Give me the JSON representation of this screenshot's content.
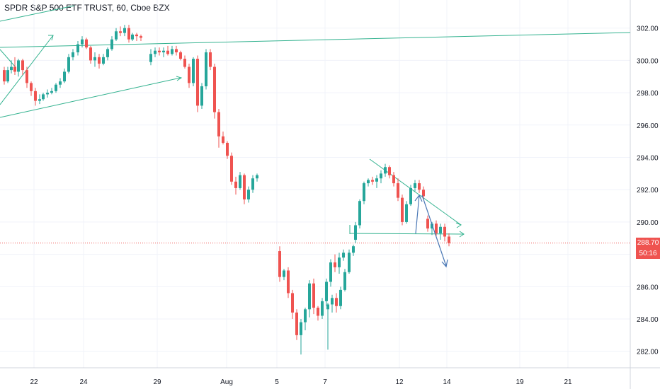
{
  "title": "SPDR S&P 500 ETF TRUST, 60, Cboe BZX",
  "chart_data": {
    "type": "candlestick",
    "ylim": [
      281.2,
      303.3
    ],
    "y_ticks": [
      282.0,
      284.0,
      286.0,
      288.0,
      290.0,
      292.0,
      294.0,
      296.0,
      298.0,
      300.0,
      302.0
    ],
    "y_tick_labels": [
      "282.00",
      "284.00",
      "286.00",
      "288.00",
      "290.00",
      "292.00",
      "294.00",
      "296.00",
      "298.00",
      "300.00",
      "302.00"
    ],
    "x_tick_labels": [
      "22",
      "24",
      "29",
      "Aug",
      "5",
      "7",
      "12",
      "14",
      "19",
      "21"
    ],
    "last_price": {
      "value": 288.7,
      "label": "288.70",
      "countdown": "50:16"
    },
    "grid": true,
    "candles": [
      [
        299.4,
        299.6,
        298.5,
        298.7
      ],
      [
        298.7,
        299.6,
        298.6,
        299.4
      ],
      [
        299.4,
        300.0,
        299.2,
        299.6
      ],
      [
        299.6,
        300.2,
        299.1,
        299.3
      ],
      [
        299.3,
        300.1,
        299.0,
        300.0
      ],
      [
        300.0,
        300.1,
        299.1,
        299.4
      ],
      [
        299.4,
        299.6,
        298.3,
        298.6
      ],
      [
        298.6,
        298.7,
        297.8,
        298.1
      ],
      [
        298.1,
        298.3,
        297.2,
        297.5
      ],
      [
        297.5,
        297.9,
        297.3,
        297.6
      ],
      [
        297.6,
        298.0,
        297.5,
        297.9
      ],
      [
        297.9,
        298.2,
        297.7,
        298.0
      ],
      [
        298.0,
        298.3,
        297.9,
        298.1
      ],
      [
        298.1,
        298.6,
        298.0,
        298.5
      ],
      [
        298.5,
        298.9,
        298.3,
        298.7
      ],
      [
        298.7,
        299.5,
        298.6,
        299.3
      ],
      [
        299.3,
        300.4,
        299.2,
        300.2
      ],
      [
        300.2,
        300.7,
        300.0,
        300.5
      ],
      [
        300.5,
        301.2,
        300.3,
        301.0
      ],
      [
        301.0,
        301.5,
        300.8,
        301.3
      ],
      [
        301.3,
        301.4,
        300.7,
        300.8
      ],
      [
        300.8,
        300.9,
        299.8,
        300.0
      ],
      [
        300.0,
        300.5,
        299.6,
        300.2
      ],
      [
        300.2,
        300.4,
        299.5,
        299.8
      ],
      [
        299.8,
        300.4,
        299.7,
        300.2
      ],
      [
        300.2,
        300.8,
        300.0,
        300.7
      ],
      [
        300.7,
        301.5,
        300.6,
        301.3
      ],
      [
        301.3,
        302.0,
        301.2,
        301.8
      ],
      [
        301.8,
        302.1,
        301.5,
        301.7
      ],
      [
        301.7,
        302.2,
        301.5,
        302.0
      ],
      [
        302.0,
        302.2,
        301.1,
        301.3
      ],
      [
        301.3,
        301.7,
        301.2,
        301.6
      ],
      [
        301.6,
        301.7,
        301.2,
        301.5
      ],
      [
        301.5,
        301.6,
        301.2,
        301.4
      ],
      [
        299.9,
        300.7,
        299.7,
        300.4
      ],
      [
        300.4,
        300.8,
        300.2,
        300.6
      ],
      [
        300.6,
        300.8,
        300.3,
        300.5
      ],
      [
        300.5,
        300.8,
        300.2,
        300.6
      ],
      [
        300.6,
        300.9,
        300.3,
        300.4
      ],
      [
        300.4,
        300.9,
        300.3,
        300.7
      ],
      [
        300.7,
        300.9,
        300.3,
        300.5
      ],
      [
        300.5,
        300.6,
        300.0,
        300.1
      ],
      [
        300.1,
        300.3,
        299.5,
        299.6
      ],
      [
        299.6,
        299.8,
        298.3,
        298.6
      ],
      [
        298.6,
        300.2,
        298.4,
        300.1
      ],
      [
        300.1,
        300.3,
        296.8,
        297.2
      ],
      [
        297.2,
        298.6,
        297.0,
        298.4
      ],
      [
        298.4,
        300.7,
        298.2,
        300.5
      ],
      [
        300.5,
        300.7,
        299.4,
        299.6
      ],
      [
        299.6,
        299.8,
        296.4,
        296.8
      ],
      [
        296.8,
        297.0,
        294.6,
        295.3
      ],
      [
        295.3,
        295.6,
        294.8,
        294.9
      ],
      [
        294.9,
        295.0,
        293.9,
        294.1
      ],
      [
        294.1,
        294.3,
        292.3,
        292.5
      ],
      [
        292.5,
        292.8,
        291.7,
        292.1
      ],
      [
        292.1,
        293.1,
        292.0,
        292.9
      ],
      [
        292.9,
        293.0,
        291.1,
        291.4
      ],
      [
        291.4,
        292.2,
        291.2,
        292.0
      ],
      [
        292.0,
        292.9,
        291.8,
        292.7
      ],
      [
        292.7,
        293.0,
        292.5,
        292.9
      ],
      [
        288.2,
        288.5,
        286.3,
        286.6
      ],
      [
        286.6,
        287.1,
        286.4,
        287.0
      ],
      [
        287.0,
        287.2,
        285.3,
        285.6
      ],
      [
        285.6,
        285.8,
        284.0,
        284.4
      ],
      [
        284.4,
        284.6,
        282.7,
        283.0
      ],
      [
        283.0,
        284.0,
        281.8,
        283.8
      ],
      [
        283.8,
        284.7,
        283.3,
        284.6
      ],
      [
        284.6,
        286.4,
        284.1,
        286.2
      ],
      [
        286.2,
        286.5,
        284.3,
        284.7
      ],
      [
        284.7,
        284.8,
        283.9,
        284.2
      ],
      [
        284.2,
        285.3,
        284.0,
        285.1
      ],
      [
        285.1,
        286.5,
        284.8,
        286.3
      ],
      [
        286.3,
        287.7,
        286.0,
        287.5
      ],
      [
        287.5,
        288.0,
        286.9,
        287.2
      ],
      [
        287.2,
        288.1,
        286.8,
        287.8
      ],
      [
        287.8,
        288.3,
        287.6,
        288.1
      ],
      [
        284.6,
        285.0,
        282.1,
        284.9
      ],
      [
        284.9,
        285.5,
        284.4,
        285.3
      ],
      [
        285.3,
        285.6,
        284.4,
        284.8
      ],
      [
        284.8,
        286.0,
        284.6,
        285.8
      ],
      [
        285.8,
        287.1,
        285.7,
        286.9
      ],
      [
        286.9,
        288.3,
        286.8,
        288.1
      ],
      [
        288.1,
        288.6,
        287.9,
        288.5
      ],
      [
        288.9,
        290.0,
        288.7,
        289.8
      ],
      [
        289.8,
        291.4,
        289.6,
        291.3
      ],
      [
        291.3,
        292.5,
        291.1,
        292.4
      ],
      [
        292.4,
        292.7,
        292.2,
        292.6
      ],
      [
        292.6,
        292.8,
        292.3,
        292.5
      ],
      [
        292.5,
        292.9,
        292.1,
        292.7
      ],
      [
        292.7,
        293.2,
        292.4,
        293.0
      ],
      [
        293.0,
        293.6,
        292.8,
        293.4
      ],
      [
        293.4,
        293.5,
        292.7,
        292.9
      ],
      [
        292.9,
        293.1,
        292.2,
        292.4
      ],
      [
        292.4,
        292.7,
        291.3,
        291.5
      ],
      [
        291.5,
        291.7,
        289.8,
        290.0
      ],
      [
        290.0,
        291.3,
        289.9,
        291.1
      ],
      [
        291.1,
        292.3,
        291.0,
        292.1
      ],
      [
        292.1,
        292.6,
        291.9,
        292.4
      ],
      [
        292.4,
        292.6,
        291.8,
        292.0
      ],
      [
        292.0,
        292.2,
        291.4,
        291.6
      ],
      [
        290.2,
        290.4,
        289.4,
        289.6
      ],
      [
        289.6,
        290.0,
        289.2,
        289.9
      ],
      [
        289.9,
        290.1,
        289.1,
        289.3
      ],
      [
        289.3,
        289.9,
        288.9,
        289.7
      ],
      [
        289.7,
        289.9,
        288.8,
        289.1
      ],
      [
        289.1,
        289.3,
        288.5,
        288.7
      ]
    ],
    "x_slots": [
      0,
      5,
      10,
      15,
      20,
      26,
      32,
      38,
      44,
      50,
      55,
      61,
      67,
      73,
      79,
      85,
      91,
      97,
      104,
      110,
      116,
      122,
      128,
      134,
      140,
      146,
      152,
      158,
      164,
      170,
      176,
      181,
      187,
      193,
      207,
      213,
      219,
      225,
      231,
      237,
      243,
      249,
      255,
      261,
      267,
      273,
      279,
      285,
      291,
      297,
      303,
      309,
      315,
      321,
      327,
      333,
      339,
      345,
      351,
      357,
      389,
      395,
      401,
      407,
      413,
      419,
      425,
      431,
      437,
      443,
      449,
      455,
      461,
      467,
      473,
      479,
      457,
      463,
      469,
      475,
      481,
      487,
      493,
      496,
      502,
      508,
      514,
      520,
      526,
      532,
      538,
      544,
      550,
      556,
      562,
      568,
      574,
      580,
      586,
      592,
      598,
      604,
      610,
      616,
      622,
      628
    ]
  },
  "colors": {
    "up": "#26a69a",
    "down": "#ef5350",
    "grid": "#f0f3fa",
    "trend": "#33b28f",
    "arrow": "#4a78b5",
    "price_line": "#ef5350",
    "countdown_bg": "#ef5350"
  }
}
